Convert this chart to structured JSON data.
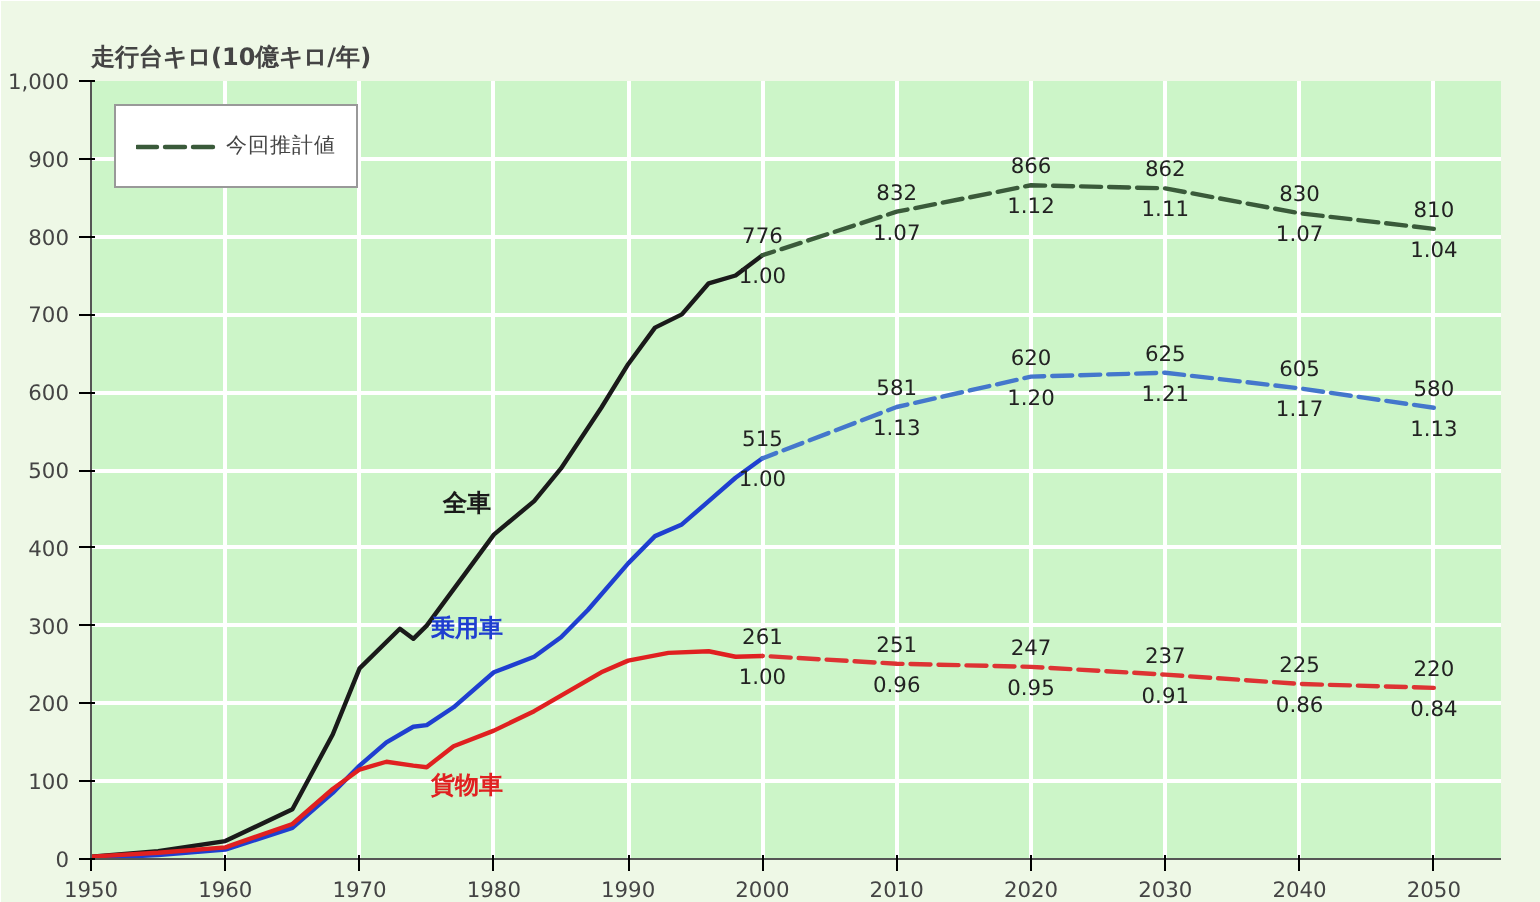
{
  "chart_data": {
    "type": "line",
    "ylabel": "走行台キロ(10億キロ/年)",
    "xlim": [
      1950,
      2055
    ],
    "xticks": [
      1950,
      1960,
      1970,
      1980,
      1990,
      2000,
      2010,
      2020,
      2030,
      2040,
      2050
    ],
    "ylim": [
      0,
      1000
    ],
    "yticks": [
      0,
      100,
      200,
      300,
      400,
      500,
      600,
      700,
      800,
      900,
      {
        "value": 1000,
        "label": "1,000"
      }
    ],
    "grid": true,
    "legend": "top left",
    "marker": "none",
    "series": [
      {
        "name": "全車",
        "color": "#1a1a1a",
        "line_style": "solid",
        "x": [
          1950,
          1955,
          1960,
          1965,
          1968,
          1970,
          1973,
          1974,
          1975,
          1978,
          1980,
          1983,
          1985,
          1988,
          1990,
          1992,
          1994,
          1996,
          1998,
          2000
        ],
        "values": [
          3,
          10,
          23,
          64,
          160,
          245,
          296,
          283,
          300,
          370,
          417,
          460,
          502,
          580,
          636,
          683,
          700,
          740,
          750,
          776
        ]
      },
      {
        "name": "乗用車",
        "color": "#1f3fd0",
        "line_style": "solid",
        "x": [
          1950,
          1955,
          1960,
          1965,
          1968,
          1970,
          1972,
          1974,
          1975,
          1977,
          1980,
          1983,
          1985,
          1987,
          1990,
          1992,
          1994,
          1996,
          1998,
          2000
        ],
        "values": [
          1,
          5,
          12,
          40,
          85,
          120,
          150,
          170,
          172,
          195,
          240,
          260,
          285,
          320,
          380,
          415,
          430,
          460,
          490,
          515
        ]
      },
      {
        "name": "貨物車",
        "color": "#e02020",
        "line_style": "solid",
        "x": [
          1950,
          1955,
          1960,
          1965,
          1968,
          1970,
          1972,
          1974,
          1975,
          1977,
          1980,
          1983,
          1985,
          1988,
          1990,
          1993,
          1996,
          1998,
          2000
        ],
        "values": [
          3,
          8,
          15,
          45,
          90,
          115,
          125,
          120,
          118,
          145,
          165,
          190,
          210,
          240,
          255,
          265,
          267,
          260,
          261
        ]
      },
      {
        "name": "今回推計値",
        "color": "#3a5a3a",
        "line_style": "dashed",
        "x": [
          2000,
          2010,
          2020,
          2030,
          2040,
          2050
        ],
        "values": [
          776,
          832,
          866,
          862,
          830,
          810
        ],
        "value_labels": [
          "776",
          "832",
          "866",
          "862",
          "830",
          "810"
        ]
      },
      {
        "color": "#4477cc",
        "line_style": "dashed",
        "x": [
          2000,
          2010,
          2020,
          2030,
          2040,
          2050
        ],
        "values": [
          515,
          581,
          620,
          625,
          605,
          580
        ],
        "value_labels": [
          "515",
          "581",
          "620",
          "625",
          "605",
          "580"
        ]
      },
      {
        "color": "#dd3333",
        "line_style": "dashed",
        "x": [
          2000,
          2010,
          2020,
          2030,
          2040,
          2050
        ],
        "values": [
          261,
          251,
          247,
          237,
          225,
          220
        ],
        "value_labels": [
          "261",
          "251",
          "247",
          "237",
          "225",
          "220"
        ]
      }
    ],
    "annotations": [
      {
        "text": "1.00",
        "x": 2000,
        "y": 776
      },
      {
        "text": "1.07",
        "x": 2010,
        "y": 832
      },
      {
        "text": "1.12",
        "x": 2020,
        "y": 866
      },
      {
        "text": "1.11",
        "x": 2030,
        "y": 862
      },
      {
        "text": "1.07",
        "x": 2040,
        "y": 830
      },
      {
        "text": "1.04",
        "x": 2050,
        "y": 810
      },
      {
        "text": "1.00",
        "x": 2000,
        "y": 515
      },
      {
        "text": "1.13",
        "x": 2010,
        "y": 581
      },
      {
        "text": "1.20",
        "x": 2020,
        "y": 620
      },
      {
        "text": "1.21",
        "x": 2030,
        "y": 625
      },
      {
        "text": "1.17",
        "x": 2040,
        "y": 605
      },
      {
        "text": "1.13",
        "x": 2050,
        "y": 580
      },
      {
        "text": "1.00",
        "x": 2000,
        "y": 261
      },
      {
        "text": "0.96",
        "x": 2010,
        "y": 251
      },
      {
        "text": "0.95",
        "x": 2020,
        "y": 247
      },
      {
        "text": "0.91",
        "x": 2030,
        "y": 237
      },
      {
        "text": "0.86",
        "x": 2040,
        "y": 225
      },
      {
        "text": "0.84",
        "x": 2050,
        "y": 220
      }
    ]
  }
}
